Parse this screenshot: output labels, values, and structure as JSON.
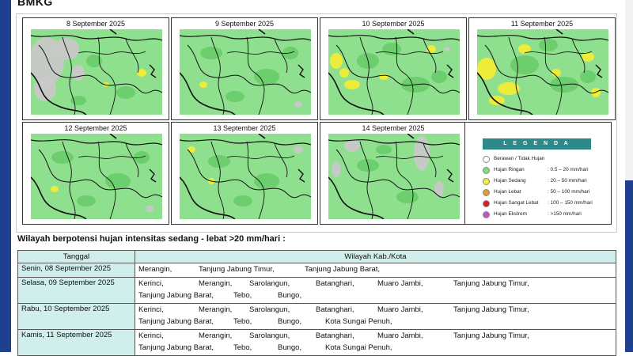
{
  "header": {
    "brand": "BMKG"
  },
  "maps": [
    {
      "date": "8 September 2025",
      "variant": "grey-west"
    },
    {
      "date": "9 September 2025",
      "variant": "green"
    },
    {
      "date": "10 September 2025",
      "variant": "yellow-west"
    },
    {
      "date": "11 September 2025",
      "variant": "yellow-heavy"
    },
    {
      "date": "12 September 2025",
      "variant": "green"
    },
    {
      "date": "13 September 2025",
      "variant": "green-few"
    },
    {
      "date": "14 September 2025",
      "variant": "grey-east"
    }
  ],
  "legend": {
    "title": "L E G E N D A",
    "items": [
      {
        "label": "Berawan / Tidak Hujan",
        "range": "",
        "color": "#ffffff"
      },
      {
        "label": "Hujan Ringan",
        "range": ": 0.5 – 20 mm/hari",
        "color": "#7fdc7f"
      },
      {
        "label": "Hujan Sedang",
        "range": ": 20 – 50 mm/hari",
        "color": "#f5f03a"
      },
      {
        "label": "Hujan Lebat",
        "range": ": 50 – 100 mm/hari",
        "color": "#e69a2e"
      },
      {
        "label": "Hujan Sangat Lebat",
        "range": ": 100 – 150 mm/hari",
        "color": "#d81f1f"
      },
      {
        "label": "Hujan Ekstrem",
        "range": ": >150 mm/hari",
        "color": "#c255c8"
      }
    ]
  },
  "section_title": "Wilayah berpotensi hujan intensitas sedang - lebat >20 mm/hari :",
  "table": {
    "col_date": "Tanggal",
    "col_region": "Wilayah Kab./Kota",
    "rows": [
      {
        "day": "Senin, 08 September 2025",
        "lines": [
          [
            "Merangin,",
            "Tanjung Jabung Timur,",
            "Tanjung Jabung Barat,"
          ]
        ]
      },
      {
        "day": "Selasa, 09 September 2025",
        "lines": [
          [
            "Kerinci,",
            "Merangin,",
            "Sarolangun,",
            "Batanghari,",
            "Muaro Jambi,",
            "Tanjung Jabung Timur,"
          ],
          [
            "Tanjung Jabung Barat,",
            "Tebo,",
            "Bungo,"
          ]
        ]
      },
      {
        "day": "Rabu, 10 September 2025",
        "lines": [
          [
            "Kerinci,",
            "Merangin,",
            "Sarolangun,",
            "Batanghari,",
            "Muaro Jambi,",
            "Tanjung Jabung Timur,"
          ],
          [
            "Tanjung Jabung Barat,",
            "Tebo,",
            "Bungo,",
            "Kota Sungai Penuh,"
          ]
        ]
      },
      {
        "day": "Kamis, 11 September 2025",
        "lines": [
          [
            "Kerinci,",
            "Merangin,",
            "Sarolangun,",
            "Batanghari,",
            "Muaro Jambi,",
            "Tanjung Jabung Timur,"
          ],
          [
            "Tanjung Jabung Barat,",
            "Tebo,",
            "Bungo,",
            "Kota Sungai Penuh,"
          ]
        ]
      }
    ]
  }
}
